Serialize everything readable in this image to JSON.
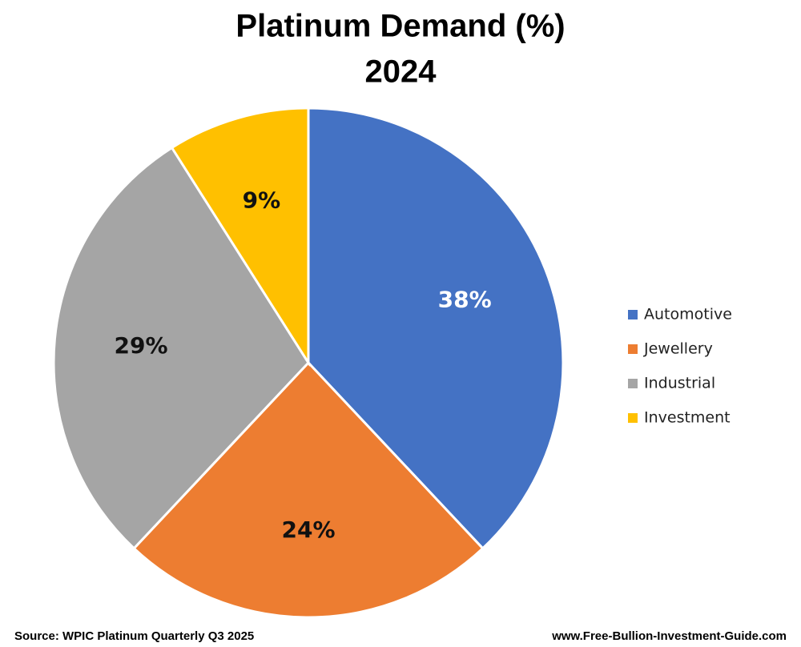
{
  "chart_data": {
    "type": "pie",
    "title": "Platinum Demand (%)",
    "subtitle": "2024",
    "categories": [
      "Automotive",
      "Jewellery",
      "Industrial",
      "Investment"
    ],
    "values": [
      38,
      24,
      29,
      9
    ],
    "value_labels": [
      "38%",
      "24%",
      "29%",
      "9%"
    ],
    "colors": [
      "#4472c4",
      "#ed7d31",
      "#a5a5a5",
      "#ffc000"
    ],
    "legend": "right",
    "source": "Source: WPIC Platinum Quarterly Q3 2025",
    "credit": "www.Free-Bullion-Investment-Guide.com"
  }
}
